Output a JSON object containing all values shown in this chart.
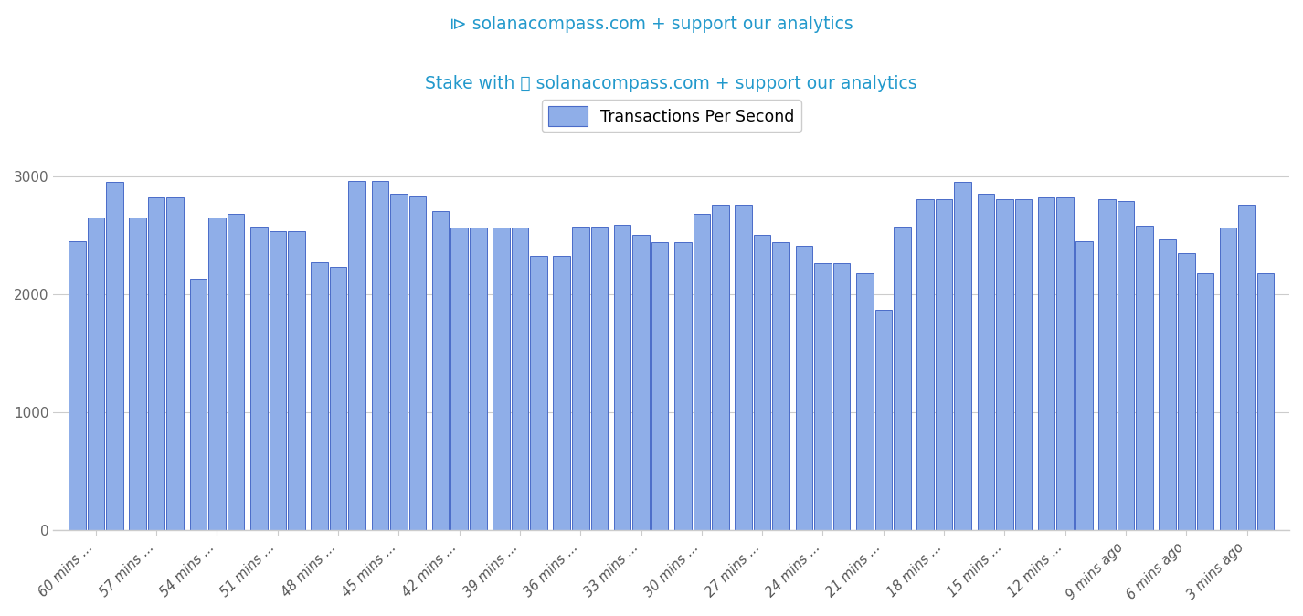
{
  "title": "Stake with ⧐ solanacompass.com + support our analytics",
  "legend_label": "Transactions Per Second",
  "bar_color_face": "#8faee8",
  "bar_color_edge": "#4a6bc8",
  "background_color": "#ffffff",
  "grid_color": "#cccccc",
  "title_color": "#2299cc",
  "ylim": [
    0,
    3200
  ],
  "yticks": [
    0,
    1000,
    2000,
    3000
  ],
  "categories": [
    "60 mins ...",
    "57 mins ...",
    "54 mins ...",
    "51 mins ...",
    "48 mins ...",
    "45 mins ...",
    "42 mins ...",
    "39 mins ...",
    "36 mins ...",
    "33 mins ...",
    "30 mins ...",
    "27 mins ...",
    "24 mins ...",
    "21 mins ...",
    "18 mins ...",
    "15 mins ...",
    "12 mins ...",
    "9 mins ago",
    "6 mins ago",
    "3 mins ago"
  ],
  "values": [
    2450,
    2650,
    2950,
    2650,
    2820,
    2820,
    2130,
    2650,
    2680,
    2570,
    2530,
    2530,
    2270,
    2230,
    2960,
    2960,
    2850,
    2830,
    2700,
    2560,
    2560,
    2560,
    2560,
    2320,
    2320,
    2570,
    2570,
    2590,
    2500,
    2440,
    2440,
    2680,
    2760,
    2760,
    2500,
    2440,
    2410,
    2260,
    2260,
    2180,
    1870,
    2570,
    2800,
    2800,
    2950,
    2850,
    2800,
    2800,
    2820,
    2820,
    2450,
    2800,
    2790,
    2580,
    2460,
    2350,
    2180,
    2560,
    2760,
    2180
  ],
  "bars_per_group": 3,
  "title_fontsize": 13.5,
  "tick_fontsize": 10.5,
  "legend_fontsize": 12.5
}
